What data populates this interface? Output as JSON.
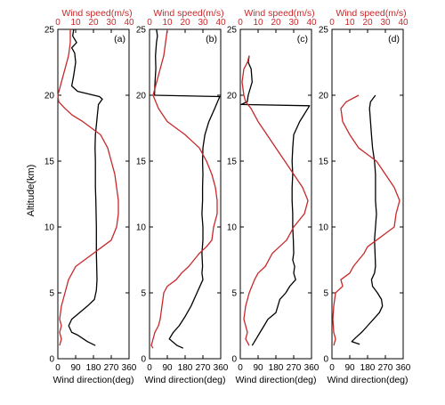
{
  "colors": {
    "speed": "#c8282a",
    "direction": "#000000",
    "frame": "#000000"
  },
  "ylabel": "Altitude(km)",
  "xlabel_bottom": "Wind direction(deg)",
  "xlabel_top": "Wind speed(m/s)",
  "y_ticks": [
    "0",
    "5",
    "10",
    "15",
    "20",
    "25"
  ],
  "bottom_ticks": [
    "0",
    "90",
    "180",
    "270",
    "360"
  ],
  "top_ticks": [
    "0",
    "10",
    "20",
    "30",
    "40"
  ],
  "chart_data": [
    {
      "type": "line",
      "panel_label": "(a)",
      "ylim": [
        0,
        25
      ],
      "xlim_bottom": [
        0,
        360
      ],
      "xlim_top": [
        0,
        40
      ],
      "series": [
        {
          "quantity": "wind direction (deg, bottom axis)",
          "color": "#000000",
          "points": [
            [
              80,
              25
            ],
            [
              75,
              24.5
            ],
            [
              95,
              24
            ],
            [
              70,
              23.6
            ],
            [
              85,
              23.2
            ],
            [
              90,
              22.5
            ],
            [
              80,
              21.5
            ],
            [
              70,
              20.7
            ],
            [
              100,
              20.3
            ],
            [
              210,
              19.9
            ],
            [
              225,
              19.7
            ],
            [
              205,
              19.3
            ],
            [
              200,
              18.5
            ],
            [
              190,
              17
            ],
            [
              188,
              16
            ],
            [
              190,
              15
            ],
            [
              190,
              13
            ],
            [
              192,
              12
            ],
            [
              195,
              10
            ],
            [
              195,
              8
            ],
            [
              198,
              6
            ],
            [
              195,
              5.2
            ],
            [
              185,
              4.5
            ],
            [
              150,
              4
            ],
            [
              110,
              3.5
            ],
            [
              70,
              3
            ],
            [
              55,
              2.5
            ],
            [
              70,
              2
            ],
            [
              100,
              1.8
            ],
            [
              150,
              1.3
            ],
            [
              190,
              1
            ]
          ]
        },
        {
          "quantity": "wind speed (m/s, top axis)",
          "color": "#c8282a",
          "points": [
            [
              7,
              25
            ],
            [
              7,
              24
            ],
            [
              6,
              23
            ],
            [
              4,
              22
            ],
            [
              2,
              21
            ],
            [
              0,
              20
            ],
            [
              0.5,
              19.5
            ],
            [
              4,
              19
            ],
            [
              8,
              18.5
            ],
            [
              14,
              18
            ],
            [
              19,
              17.5
            ],
            [
              24,
              17
            ],
            [
              28,
              16
            ],
            [
              30,
              15
            ],
            [
              32,
              14
            ],
            [
              33,
              13
            ],
            [
              34,
              12
            ],
            [
              34,
              11
            ],
            [
              33,
              10
            ],
            [
              30,
              9
            ],
            [
              25,
              8.5
            ],
            [
              20,
              8
            ],
            [
              15,
              7.5
            ],
            [
              10,
              7
            ],
            [
              6,
              6
            ],
            [
              4,
              5
            ],
            [
              2,
              4
            ],
            [
              1,
              3
            ],
            [
              2,
              2.5
            ],
            [
              1,
              2
            ],
            [
              2,
              1.5
            ],
            [
              1,
              1
            ]
          ]
        }
      ]
    },
    {
      "type": "line",
      "panel_label": "(b)",
      "ylim": [
        0,
        25
      ],
      "xlim_bottom": [
        0,
        360
      ],
      "xlim_top": [
        0,
        40
      ],
      "series": [
        {
          "quantity": "wind direction (deg, bottom axis)",
          "color": "#000000",
          "points": [
            [
              35,
              25
            ],
            [
              40,
              24.5
            ],
            [
              35,
              24
            ],
            [
              30,
              23
            ],
            [
              32,
              22
            ],
            [
              28,
              21
            ],
            [
              25,
              20
            ],
            [
              355,
              19.9
            ],
            [
              330,
              19
            ],
            [
              300,
              18
            ],
            [
              280,
              17
            ],
            [
              270,
              16
            ],
            [
              268,
              15
            ],
            [
              270,
              14
            ],
            [
              268,
              13
            ],
            [
              268,
              12
            ],
            [
              265,
              11
            ],
            [
              270,
              10
            ],
            [
              270,
              9
            ],
            [
              265,
              8
            ],
            [
              268,
              7
            ],
            [
              265,
              6.5
            ],
            [
              270,
              6
            ],
            [
              240,
              5
            ],
            [
              210,
              4
            ],
            [
              180,
              3.2
            ],
            [
              150,
              2.5
            ],
            [
              120,
              2
            ],
            [
              100,
              1.5
            ],
            [
              140,
              1
            ],
            [
              170,
              0.8
            ]
          ]
        },
        {
          "quantity": "wind speed (m/s, top axis)",
          "color": "#c8282a",
          "points": [
            [
              10,
              25
            ],
            [
              9,
              24
            ],
            [
              8,
              23
            ],
            [
              6,
              22
            ],
            [
              4,
              21
            ],
            [
              2,
              20
            ],
            [
              5,
              19
            ],
            [
              10,
              18
            ],
            [
              15,
              17.5
            ],
            [
              20,
              17
            ],
            [
              24,
              16.5
            ],
            [
              28,
              16
            ],
            [
              32,
              15
            ],
            [
              35,
              14
            ],
            [
              37,
              13
            ],
            [
              38,
              12
            ],
            [
              38,
              11
            ],
            [
              36,
              10
            ],
            [
              35,
              9
            ],
            [
              32,
              8.5
            ],
            [
              28,
              8
            ],
            [
              22,
              7
            ],
            [
              18,
              6.5
            ],
            [
              15,
              6
            ],
            [
              10,
              5.5
            ],
            [
              8,
              5
            ],
            [
              7,
              4
            ],
            [
              6,
              3
            ],
            [
              5,
              2.5
            ],
            [
              3,
              2
            ],
            [
              1,
              1
            ],
            [
              2,
              0.8
            ]
          ]
        }
      ]
    },
    {
      "type": "line",
      "panel_label": "(c)",
      "ylim": [
        0,
        25
      ],
      "xlim_bottom": [
        0,
        360
      ],
      "xlim_top": [
        0,
        40
      ],
      "series": [
        {
          "quantity": "wind direction (deg, bottom axis)",
          "color": "#000000",
          "points": [
            [
              45,
              23
            ],
            [
              40,
              22.5
            ],
            [
              55,
              22
            ],
            [
              60,
              21
            ],
            [
              40,
              20
            ],
            [
              35,
              19.5
            ],
            [
              5,
              19.3
            ],
            [
              350,
              19.2
            ],
            [
              300,
              18
            ],
            [
              270,
              17
            ],
            [
              265,
              16
            ],
            [
              262,
              15
            ],
            [
              265,
              14
            ],
            [
              262,
              13
            ],
            [
              262,
              12
            ],
            [
              265,
              11
            ],
            [
              265,
              10
            ],
            [
              268,
              9
            ],
            [
              270,
              8
            ],
            [
              265,
              7.5
            ],
            [
              275,
              7
            ],
            [
              270,
              6.5
            ],
            [
              280,
              6
            ],
            [
              250,
              5.5
            ],
            [
              230,
              5
            ],
            [
              200,
              4.5
            ],
            [
              180,
              3.5
            ],
            [
              140,
              3
            ],
            [
              120,
              2.5
            ],
            [
              100,
              2
            ],
            [
              80,
              1.5
            ],
            [
              60,
              1
            ]
          ]
        },
        {
          "quantity": "wind speed (m/s, top axis)",
          "color": "#c8282a",
          "points": [
            [
              5,
              23
            ],
            [
              4,
              22.5
            ],
            [
              2,
              22
            ],
            [
              1,
              21
            ],
            [
              2,
              20
            ],
            [
              3,
              19.5
            ],
            [
              6,
              19
            ],
            [
              10,
              18
            ],
            [
              15,
              17
            ],
            [
              20,
              16
            ],
            [
              25,
              15
            ],
            [
              30,
              14
            ],
            [
              35,
              13
            ],
            [
              38,
              12
            ],
            [
              36,
              11
            ],
            [
              33,
              10.5
            ],
            [
              30,
              10
            ],
            [
              28,
              9.5
            ],
            [
              26,
              9
            ],
            [
              22,
              8.5
            ],
            [
              18,
              8
            ],
            [
              14,
              7
            ],
            [
              10,
              6.5
            ],
            [
              8,
              6
            ],
            [
              5,
              5
            ],
            [
              3,
              4
            ],
            [
              2,
              3
            ],
            [
              4,
              2
            ],
            [
              3,
              1.5
            ],
            [
              5,
              1
            ]
          ]
        }
      ]
    },
    {
      "type": "line",
      "panel_label": "(d)",
      "ylim": [
        0,
        25
      ],
      "xlim_bottom": [
        0,
        360
      ],
      "xlim_top": [
        0,
        40
      ],
      "series": [
        {
          "quantity": "wind direction (deg, bottom axis)",
          "color": "#000000",
          "points": [
            [
              220,
              20
            ],
            [
              195,
              19.5
            ],
            [
              190,
              19
            ],
            [
              195,
              18
            ],
            [
              200,
              17
            ],
            [
              205,
              16
            ],
            [
              215,
              15
            ],
            [
              220,
              14
            ],
            [
              220,
              13
            ],
            [
              220,
              12
            ],
            [
              225,
              11
            ],
            [
              220,
              10
            ],
            [
              215,
              9
            ],
            [
              218,
              8
            ],
            [
              220,
              7
            ],
            [
              215,
              6.5
            ],
            [
              200,
              6
            ],
            [
              205,
              5.5
            ],
            [
              230,
              5
            ],
            [
              250,
              4.5
            ],
            [
              255,
              4
            ],
            [
              240,
              3.5
            ],
            [
              210,
              3
            ],
            [
              180,
              2.5
            ],
            [
              150,
              2
            ],
            [
              120,
              1.6
            ],
            [
              100,
              1.3
            ],
            [
              140,
              1.1
            ]
          ]
        },
        {
          "quantity": "wind speed (m/s, top axis)",
          "color": "#c8282a",
          "points": [
            [
              15,
              20
            ],
            [
              8,
              19.5
            ],
            [
              5,
              19
            ],
            [
              6,
              18
            ],
            [
              10,
              17
            ],
            [
              15,
              16
            ],
            [
              20,
              15.5
            ],
            [
              25,
              15
            ],
            [
              30,
              14
            ],
            [
              35,
              13
            ],
            [
              38,
              12
            ],
            [
              36,
              11
            ],
            [
              35,
              10
            ],
            [
              30,
              9.5
            ],
            [
              25,
              9
            ],
            [
              20,
              8.5
            ],
            [
              18,
              8
            ],
            [
              15,
              7.5
            ],
            [
              12,
              7
            ],
            [
              10,
              6.5
            ],
            [
              5,
              6
            ],
            [
              6,
              5.5
            ],
            [
              2,
              5
            ],
            [
              1,
              4
            ],
            [
              0.5,
              3
            ],
            [
              1,
              2
            ],
            [
              2,
              1.5
            ],
            [
              1,
              1
            ]
          ]
        }
      ]
    }
  ]
}
